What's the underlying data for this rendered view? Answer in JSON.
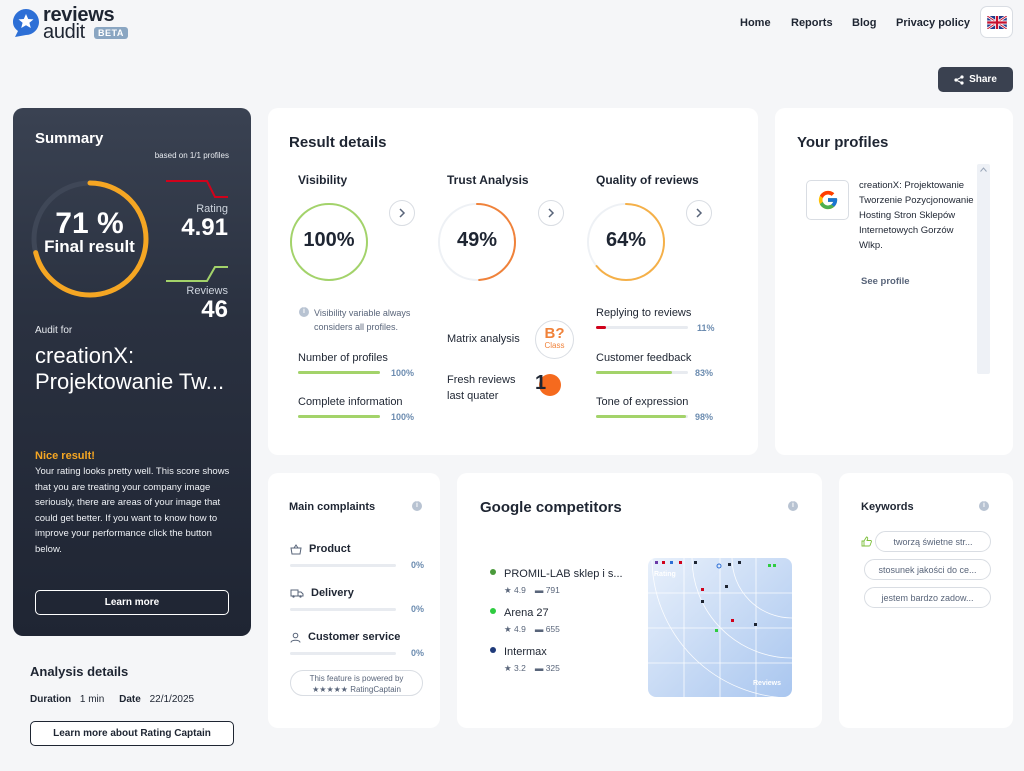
{
  "header": {
    "logo_text_1": "reviews",
    "logo_text_2": "audit",
    "logo_badge": "BETA",
    "nav": [
      "Home",
      "Reports",
      "Blog",
      "Privacy policy"
    ],
    "language_icon": "uk-flag-icon",
    "share_label": "Share"
  },
  "summary": {
    "title": "Summary",
    "based_on": "based on 1/1 profiles",
    "final_percent": "71 %",
    "final_percent_value": 71,
    "final_label": "Final result",
    "rating_label": "Rating",
    "rating_value": "4.91",
    "reviews_label": "Reviews",
    "reviews_value": "46",
    "audit_for": "Audit for",
    "audit_name": "creationX: Projektowanie Tw...",
    "nice_title": "Nice result!",
    "nice_text": "Your rating looks pretty well. This score shows that you are treating your company image seriously, there are areas of your image that could get better. If you want to know how to improve your performance click the button below.",
    "learn_more": "Learn more"
  },
  "analysis": {
    "title": "Analysis details",
    "duration_label": "Duration",
    "duration_value": "1 min",
    "date_label": "Date",
    "date_value": "22/1/2025",
    "rc_button": "Learn more about Rating Captain"
  },
  "result_details": {
    "title": "Result details",
    "visibility": {
      "title": "Visibility",
      "value": "100%",
      "value_num": 100,
      "color": "#a3d36a",
      "note": "Visibility variable always considers all profiles.",
      "metrics": [
        {
          "label": "Number of profiles",
          "pct": "100%",
          "value": 100,
          "color": "#a3d36a"
        },
        {
          "label": "Complete information",
          "pct": "100%",
          "value": 100,
          "color": "#a3d36a"
        }
      ]
    },
    "trust": {
      "title": "Trust Analysis",
      "value": "49%",
      "value_num": 49,
      "color": "#f0823a",
      "matrix_label": "Matrix analysis",
      "matrix_value": "B?",
      "matrix_class": "Class",
      "fresh_label_1": "Fresh reviews",
      "fresh_label_2": "last quater",
      "fresh_value": "1"
    },
    "quality": {
      "title": "Quality of reviews",
      "value": "64%",
      "value_num": 64,
      "color": "#f5b048",
      "metrics": [
        {
          "label": "Replying to reviews",
          "pct": "11%",
          "value": 11,
          "color": "#d0021b"
        },
        {
          "label": "Customer feedback",
          "pct": "83%",
          "value": 83,
          "color": "#a3d36a"
        },
        {
          "label": "Tone of expression",
          "pct": "98%",
          "value": 98,
          "color": "#a3d36a"
        }
      ]
    }
  },
  "profiles": {
    "title": "Your profiles",
    "items": [
      {
        "icon": "google-icon",
        "name": "creationX: Projektowanie Tworzenie Pozycjonowanie Hosting Stron Sklepów Internetowych Gorzów Wlkp.",
        "link": "See profile"
      }
    ]
  },
  "complaints": {
    "title": "Main complaints",
    "items": [
      {
        "icon": "basket-icon",
        "label": "Product",
        "pct": "0%",
        "value": 0
      },
      {
        "icon": "truck-icon",
        "label": "Delivery",
        "pct": "0%",
        "value": 0
      },
      {
        "icon": "person-icon",
        "label": "Customer service",
        "pct": "0%",
        "value": 0
      }
    ],
    "powered_1": "This feature is powered by",
    "powered_2": "★★★★★ RatingCaptain"
  },
  "competitors": {
    "title": "Google competitors",
    "items": [
      {
        "name": "PROMIL-LAB sklep i s...",
        "rating": "4.9",
        "reviews": "791",
        "color": "#4a9a3a"
      },
      {
        "name": "Arena 27",
        "rating": "4.9",
        "reviews": "655",
        "color": "#2ecc40"
      },
      {
        "name": "Intermax",
        "rating": "3.2",
        "reviews": "325",
        "color": "#1f3a7a"
      }
    ],
    "plot_y_label": "Rating",
    "plot_x_label": "Reviews"
  },
  "keywords": {
    "title": "Keywords",
    "items": [
      "tworzą świetne str...",
      "stosunek jakości do ce...",
      "jestem bardzo zadow..."
    ]
  }
}
